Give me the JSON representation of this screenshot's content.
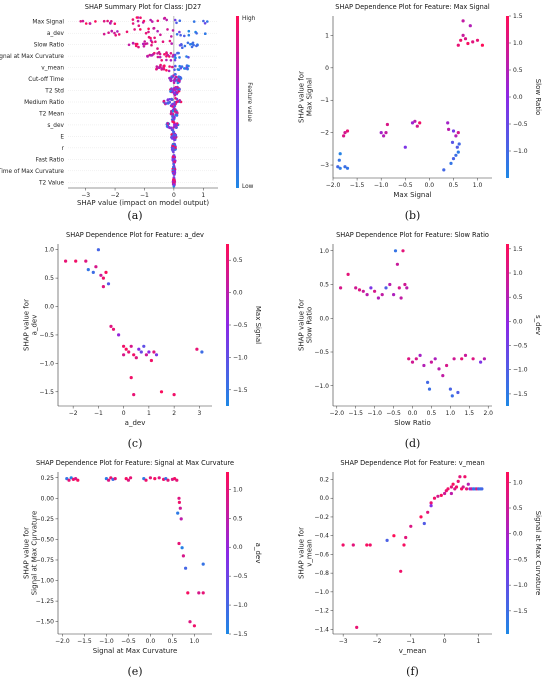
{
  "figure": {
    "captions": [
      "(a)",
      "(b)",
      "(c)",
      "(d)",
      "(e)",
      "(f)"
    ]
  },
  "chart_data": [
    {
      "type": "scatter",
      "subtype": "beeswarm",
      "title": "SHAP Summary Plot for Class: JD27",
      "xlabel": "SHAP value (impact on model output)",
      "colorbar_label": "Feature value",
      "colorbar_ticks": [
        "Low",
        "High"
      ],
      "xlim": [
        -3.6,
        1.5
      ],
      "xticks": [
        -3,
        -2,
        -1,
        0,
        1
      ],
      "features": [
        "Max Signal",
        "a_dev",
        "Slow Ratio",
        "Signal at Max Curvature",
        "v_mean",
        "Cut-off Time",
        "T2 Std",
        "Medium Ratio",
        "T2 Mean",
        "s_dev",
        "E",
        "r",
        "Fast Ratio",
        "Time of Max Curvature",
        "T2 Value"
      ],
      "spread": [
        [
          -3.2,
          1.2
        ],
        [
          -2.4,
          1.1
        ],
        [
          -1.6,
          0.9
        ],
        [
          -0.9,
          0.5
        ],
        [
          -0.6,
          0.5
        ],
        [
          -0.15,
          0.25
        ],
        [
          -0.12,
          0.2
        ],
        [
          -0.35,
          0.25
        ],
        [
          -0.1,
          0.12
        ],
        [
          -0.25,
          0.15
        ],
        [
          -0.08,
          0.08
        ],
        [
          -0.06,
          0.06
        ],
        [
          -0.05,
          0.05
        ],
        [
          -0.04,
          0.04
        ],
        [
          -0.03,
          0.03
        ]
      ],
      "colors": {
        "low": "#1e88e5",
        "high": "#ff0d57"
      }
    },
    {
      "type": "scatter",
      "title": "SHAP Dependence Plot for Feature: Max Signal",
      "xlabel": "Max Signal",
      "ylabel": "SHAP value for\nMax Signal",
      "colorbar_label": "Slow Ratio",
      "colorbar_range": [
        -1.5,
        1.5
      ],
      "colorbar_ticks": [
        -1.0,
        -0.5,
        0.0,
        0.5,
        1.0,
        1.5
      ],
      "xlim": [
        -2.0,
        1.3
      ],
      "ylim": [
        -3.4,
        1.6
      ],
      "xticks": [
        -2.0,
        -1.5,
        -1.0,
        -0.5,
        0.0,
        0.5,
        1.0
      ],
      "yticks": [
        -3,
        -2,
        -1,
        0,
        1
      ],
      "points": [
        [
          -1.85,
          -2.65,
          -1.4
        ],
        [
          -1.87,
          -2.85,
          -1.2
        ],
        [
          -1.9,
          -3.05,
          -1.0
        ],
        [
          -1.85,
          -3.1,
          -1.3
        ],
        [
          -1.75,
          -3.05,
          -1.1
        ],
        [
          -1.7,
          -3.1,
          -1.2
        ],
        [
          -1.75,
          -2.0,
          0.9
        ],
        [
          -1.7,
          -1.95,
          1.2
        ],
        [
          -1.78,
          -2.1,
          1.0
        ],
        [
          -1.0,
          -2.0,
          0.3
        ],
        [
          -0.95,
          -2.1,
          0.5
        ],
        [
          -0.9,
          -2.0,
          0.7
        ],
        [
          -0.87,
          -1.75,
          1.0
        ],
        [
          -0.5,
          -2.45,
          -0.2
        ],
        [
          -0.3,
          -1.65,
          0.6
        ],
        [
          -0.25,
          -1.8,
          0.9
        ],
        [
          -0.2,
          -1.7,
          1.3
        ],
        [
          -0.35,
          -1.7,
          0.2
        ],
        [
          0.3,
          -3.15,
          -1.0
        ],
        [
          0.45,
          -2.95,
          -1.2
        ],
        [
          0.5,
          -2.8,
          -0.9
        ],
        [
          0.55,
          -2.7,
          -1.1
        ],
        [
          0.6,
          -2.6,
          -1.3
        ],
        [
          0.62,
          -2.35,
          -1.0
        ],
        [
          0.58,
          -2.45,
          -0.8
        ],
        [
          0.48,
          -2.3,
          -0.7
        ],
        [
          0.55,
          -2.1,
          0.5
        ],
        [
          0.6,
          -2.0,
          0.9
        ],
        [
          0.5,
          -1.95,
          -0.3
        ],
        [
          0.4,
          -1.9,
          0.6
        ],
        [
          0.38,
          -1.7,
          0.3
        ],
        [
          0.6,
          0.7,
          1.2
        ],
        [
          0.65,
          0.85,
          1.3
        ],
        [
          0.7,
          1.0,
          0.8
        ],
        [
          0.75,
          0.9,
          1.0
        ],
        [
          0.8,
          0.75,
          1.4
        ],
        [
          0.85,
          1.3,
          0.5
        ],
        [
          0.9,
          0.8,
          1.1
        ],
        [
          1.0,
          0.85,
          1.2
        ],
        [
          1.1,
          0.7,
          1.5
        ],
        [
          0.7,
          1.45,
          0.7
        ]
      ]
    },
    {
      "type": "scatter",
      "title": "SHAP Dependence Plot for Feature: a_dev",
      "xlabel": "a_dev",
      "ylabel": "SHAP value for\na_dev",
      "colorbar_label": "Max Signal",
      "colorbar_range": [
        -1.75,
        0.75
      ],
      "colorbar_ticks": [
        -1.5,
        -1.0,
        -0.5,
        0.0,
        0.5
      ],
      "xlim": [
        -2.6,
        3.5
      ],
      "ylim": [
        -1.75,
        1.1
      ],
      "xticks": [
        -2,
        -1,
        0,
        1,
        2,
        3
      ],
      "yticks": [
        -1.5,
        -1.0,
        -0.5,
        0.0,
        0.5,
        1.0
      ],
      "points": [
        [
          -2.3,
          0.8,
          0.5
        ],
        [
          -1.9,
          0.8,
          0.6
        ],
        [
          -1.5,
          0.8,
          0.4
        ],
        [
          -1.4,
          0.65,
          -1.5
        ],
        [
          -1.2,
          0.6,
          -1.4
        ],
        [
          -1.1,
          0.7,
          0.3
        ],
        [
          -1.0,
          1.0,
          -1.3
        ],
        [
          -0.9,
          0.55,
          0.2
        ],
        [
          -0.8,
          0.5,
          0.6
        ],
        [
          -0.7,
          0.6,
          0.7
        ],
        [
          -0.8,
          0.35,
          0.4
        ],
        [
          -0.6,
          0.4,
          -1.1
        ],
        [
          -0.5,
          -0.35,
          0.4
        ],
        [
          -0.4,
          -0.4,
          0.5
        ],
        [
          -0.2,
          -0.5,
          -0.4
        ],
        [
          0.0,
          -0.7,
          0.6
        ],
        [
          0.1,
          -0.75,
          0.7
        ],
        [
          0.2,
          -0.8,
          0.5
        ],
        [
          0.3,
          -0.7,
          0.3
        ],
        [
          0.4,
          -0.85,
          0.6
        ],
        [
          0.5,
          -0.9,
          0.4
        ],
        [
          0.6,
          -0.75,
          -0.6
        ],
        [
          0.7,
          -0.8,
          -0.9
        ],
        [
          0.8,
          -0.7,
          -1.0
        ],
        [
          0.9,
          -0.85,
          0.2
        ],
        [
          1.0,
          -0.8,
          -0.5
        ],
        [
          1.1,
          -0.95,
          0.6
        ],
        [
          1.2,
          -0.8,
          0.4
        ],
        [
          1.3,
          -0.85,
          -0.7
        ],
        [
          0.3,
          -1.25,
          0.6
        ],
        [
          0.4,
          -1.55,
          0.5
        ],
        [
          1.5,
          -1.5,
          0.7
        ],
        [
          2.0,
          -1.55,
          0.6
        ],
        [
          2.9,
          -0.75,
          0.5
        ],
        [
          3.1,
          -0.8,
          -1.4
        ],
        [
          0.0,
          -0.85,
          0.3
        ]
      ]
    },
    {
      "type": "scatter",
      "title": "SHAP Dependence Plot for Feature: Slow Ratio",
      "xlabel": "Slow Ratio",
      "ylabel": "SHAP value for\nSlow Ratio",
      "colorbar_label": "s_dev",
      "colorbar_range": [
        -1.75,
        1.6
      ],
      "colorbar_ticks": [
        -1.5,
        -1.0,
        -0.5,
        0.0,
        0.5,
        1.0,
        1.5
      ],
      "xlim": [
        -2.1,
        2.1
      ],
      "ylim": [
        -1.3,
        1.1
      ],
      "xticks": [
        -2.0,
        -1.5,
        -1.0,
        -0.5,
        0.0,
        0.5,
        1.0,
        1.5,
        2.0
      ],
      "yticks": [
        -1.0,
        -0.5,
        0.0,
        0.5,
        1.0
      ],
      "points": [
        [
          -1.9,
          0.45,
          1.0
        ],
        [
          -1.7,
          0.65,
          1.2
        ],
        [
          -1.5,
          0.45,
          0.9
        ],
        [
          -1.4,
          0.42,
          1.1
        ],
        [
          -1.3,
          0.4,
          0.8
        ],
        [
          -1.2,
          0.35,
          0.6
        ],
        [
          -1.1,
          0.45,
          -0.3
        ],
        [
          -1.0,
          0.4,
          1.0
        ],
        [
          -0.9,
          0.3,
          0.5
        ],
        [
          -0.8,
          0.35,
          0.7
        ],
        [
          -0.7,
          0.45,
          -1.0
        ],
        [
          -0.6,
          0.5,
          0.6
        ],
        [
          -0.5,
          0.35,
          0.4
        ],
        [
          -0.45,
          1.0,
          -1.4
        ],
        [
          -0.4,
          0.8,
          0.8
        ],
        [
          -0.35,
          0.45,
          1.0
        ],
        [
          -0.3,
          0.3,
          0.7
        ],
        [
          -0.25,
          1.0,
          1.2
        ],
        [
          -0.2,
          0.5,
          0.9
        ],
        [
          -0.15,
          0.45,
          0.6
        ],
        [
          -0.1,
          -0.6,
          1.1
        ],
        [
          0.0,
          -0.65,
          0.9
        ],
        [
          0.1,
          -0.6,
          1.0
        ],
        [
          0.2,
          -0.55,
          0.3
        ],
        [
          0.3,
          -0.7,
          0.5
        ],
        [
          0.4,
          -0.95,
          -1.2
        ],
        [
          0.45,
          -1.05,
          -1.3
        ],
        [
          0.5,
          -0.65,
          0.8
        ],
        [
          0.6,
          -0.6,
          0.4
        ],
        [
          0.7,
          -0.75,
          0.6
        ],
        [
          0.8,
          -0.85,
          0.7
        ],
        [
          0.9,
          -0.7,
          1.0
        ],
        [
          1.0,
          -1.05,
          -1.1
        ],
        [
          1.05,
          -1.15,
          -1.3
        ],
        [
          1.1,
          -0.6,
          0.9
        ],
        [
          1.2,
          -1.1,
          -1.0
        ],
        [
          1.3,
          -0.6,
          1.2
        ],
        [
          1.4,
          -0.55,
          0.8
        ],
        [
          1.6,
          -0.6,
          1.1
        ],
        [
          1.8,
          -0.65,
          -0.3
        ],
        [
          1.9,
          -0.6,
          0.6
        ]
      ]
    },
    {
      "type": "scatter",
      "title": "SHAP Dependence Plot for Feature: Signal at Max Curvature",
      "xlabel": "Signal at Max Curvature",
      "ylabel": "SHAP value for\nSignal at Max Curvature",
      "colorbar_label": "a_dev",
      "colorbar_range": [
        -1.5,
        1.3
      ],
      "colorbar_ticks": [
        -1.5,
        -1.0,
        -0.5,
        0.0,
        0.5,
        1.0
      ],
      "xlim": [
        -2.1,
        1.4
      ],
      "ylim": [
        -1.65,
        0.32
      ],
      "xticks": [
        -2.0,
        -1.5,
        -1.0,
        -0.5,
        0.0,
        0.5,
        1.0
      ],
      "yticks": [
        -1.5,
        -1.25,
        -1.0,
        -0.75,
        -0.5,
        -0.25,
        0.0,
        0.25
      ],
      "points": [
        [
          -1.9,
          0.24,
          -1.2
        ],
        [
          -1.85,
          0.22,
          1.0
        ],
        [
          -1.8,
          0.25,
          -1.4
        ],
        [
          -1.75,
          0.23,
          1.1
        ],
        [
          -1.7,
          0.24,
          0.8
        ],
        [
          -1.65,
          0.22,
          1.2
        ],
        [
          -1.0,
          0.24,
          -1.3
        ],
        [
          -0.95,
          0.22,
          0.9
        ],
        [
          -0.9,
          0.25,
          1.1
        ],
        [
          -0.85,
          0.23,
          -1.1
        ],
        [
          -0.8,
          0.24,
          1.0
        ],
        [
          -0.55,
          0.24,
          1.2
        ],
        [
          -0.5,
          0.22,
          0.9
        ],
        [
          -0.45,
          0.25,
          1.0
        ],
        [
          -0.15,
          0.24,
          -1.3
        ],
        [
          -0.1,
          0.22,
          1.1
        ],
        [
          0.0,
          0.25,
          1.0
        ],
        [
          0.1,
          0.24,
          1.2
        ],
        [
          0.2,
          0.25,
          0.9
        ],
        [
          0.3,
          0.23,
          1.1
        ],
        [
          0.35,
          0.24,
          -1.2
        ],
        [
          0.4,
          0.22,
          1.0
        ],
        [
          0.5,
          0.23,
          0.8
        ],
        [
          0.55,
          0.24,
          1.2
        ],
        [
          0.6,
          0.22,
          1.0
        ],
        [
          0.65,
          0.0,
          0.9
        ],
        [
          0.66,
          -0.05,
          1.1
        ],
        [
          0.68,
          -0.12,
          0.7
        ],
        [
          0.62,
          -0.18,
          -1.3
        ],
        [
          0.7,
          -0.25,
          0.5
        ],
        [
          0.65,
          -0.55,
          1.0
        ],
        [
          0.72,
          -0.6,
          -1.4
        ],
        [
          0.75,
          -0.7,
          0.8
        ],
        [
          0.8,
          -0.85,
          -1.0
        ],
        [
          0.85,
          -1.15,
          1.2
        ],
        [
          0.9,
          -1.5,
          0.9
        ],
        [
          1.0,
          -1.55,
          1.1
        ],
        [
          1.1,
          -1.15,
          0.8
        ],
        [
          1.2,
          -1.15,
          1.0
        ],
        [
          1.2,
          -0.8,
          -1.2
        ]
      ]
    },
    {
      "type": "scatter",
      "title": "SHAP Dependence Plot for Feature: v_mean",
      "xlabel": "v_mean",
      "ylabel": "SHAP value for\nv_mean",
      "colorbar_label": "Signal at Max Curvature",
      "colorbar_range": [
        -1.95,
        1.2
      ],
      "colorbar_ticks": [
        -1.5,
        -1.0,
        -0.5,
        0.0,
        0.5,
        1.0
      ],
      "xlim": [
        -3.3,
        1.4
      ],
      "ylim": [
        -1.45,
        0.28
      ],
      "xticks": [
        -3,
        -2,
        -1,
        0,
        1
      ],
      "yticks": [
        -1.4,
        -1.2,
        -1.0,
        -0.8,
        -0.6,
        -0.4,
        -0.2,
        0.0,
        0.2
      ],
      "points": [
        [
          -3.0,
          -0.5,
          1.0
        ],
        [
          -2.7,
          -0.5,
          0.8
        ],
        [
          -2.6,
          -1.38,
          0.9
        ],
        [
          -2.3,
          -0.5,
          1.1
        ],
        [
          -2.2,
          -0.5,
          1.0
        ],
        [
          -1.7,
          -0.45,
          -1.3
        ],
        [
          -1.5,
          -0.4,
          1.2
        ],
        [
          -1.3,
          -0.78,
          1.0
        ],
        [
          -1.2,
          -0.5,
          1.1
        ],
        [
          -1.15,
          -0.42,
          0.8
        ],
        [
          -1.0,
          -0.3,
          0.7
        ],
        [
          -0.6,
          -0.27,
          -1.2
        ],
        [
          -0.5,
          -0.15,
          0.8
        ],
        [
          -0.4,
          -0.05,
          0.9
        ],
        [
          -0.3,
          0.0,
          1.0
        ],
        [
          -0.2,
          0.02,
          0.6
        ],
        [
          -0.1,
          0.03,
          1.1
        ],
        [
          0.0,
          0.05,
          0.5
        ],
        [
          0.05,
          0.08,
          0.9
        ],
        [
          0.1,
          0.1,
          1.0
        ],
        [
          0.2,
          0.12,
          0.8
        ],
        [
          0.25,
          0.15,
          1.1
        ],
        [
          0.3,
          0.1,
          0.7
        ],
        [
          0.35,
          0.12,
          1.0
        ],
        [
          0.4,
          0.18,
          0.9
        ],
        [
          0.45,
          0.23,
          0.8
        ],
        [
          0.5,
          0.1,
          1.1
        ],
        [
          0.55,
          0.12,
          0.6
        ],
        [
          0.6,
          0.23,
          1.0
        ],
        [
          0.65,
          0.1,
          0.9
        ],
        [
          0.7,
          0.15,
          0.2
        ],
        [
          0.75,
          0.1,
          -0.2
        ],
        [
          0.8,
          0.1,
          0.5
        ],
        [
          0.85,
          0.1,
          -1.5
        ],
        [
          0.9,
          0.1,
          -1.7
        ],
        [
          0.95,
          0.1,
          0.8
        ],
        [
          1.0,
          0.1,
          -1.3
        ],
        [
          1.05,
          0.1,
          -1.6
        ],
        [
          1.1,
          0.1,
          -1.4
        ],
        [
          -0.4,
          -0.08,
          -0.5
        ],
        [
          0.2,
          0.05,
          0.3
        ],
        [
          -0.7,
          -0.2,
          1.2
        ]
      ]
    }
  ]
}
